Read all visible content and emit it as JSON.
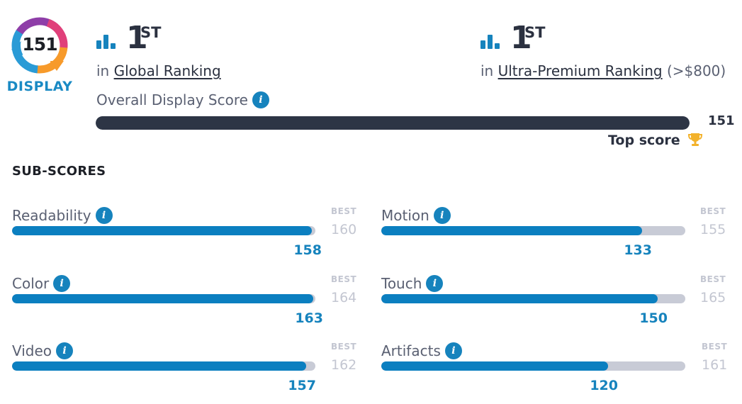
{
  "badge": {
    "score": "151",
    "label": "DISPLAY"
  },
  "rankings": [
    {
      "icon": "bar-chart-icon",
      "rank": "1",
      "suffix": "ST",
      "prefix": "in",
      "link_text": "Global Ranking",
      "extra": ""
    },
    {
      "icon": "bar-chart-icon",
      "rank": "1",
      "suffix": "ST",
      "prefix": "in",
      "link_text": "Ultra-Premium Ranking",
      "extra": "(>$800)"
    }
  ],
  "overall": {
    "label": "Overall Display Score",
    "value": "151",
    "fraction": 1.0,
    "top_score_label": "Top score",
    "top_score_icon": "trophy-icon"
  },
  "sub_scores_title": "SUB-SCORES",
  "best_label": "BEST",
  "sub_scores": [
    {
      "name": "Readability",
      "value": "158",
      "best": "160"
    },
    {
      "name": "Motion",
      "value": "133",
      "best": "155"
    },
    {
      "name": "Color",
      "value": "163",
      "best": "164"
    },
    {
      "name": "Touch",
      "value": "150",
      "best": "165"
    },
    {
      "name": "Video",
      "value": "157",
      "best": "162"
    },
    {
      "name": "Artifacts",
      "value": "120",
      "best": "161"
    }
  ],
  "colors": {
    "accent_blue": "#1683bd",
    "bar_fill": "#0b7fc0",
    "dark_bar": "#2d3545",
    "track": "#c8cbd6",
    "muted": "#c3c6d1",
    "trophy": "#f3b22b"
  }
}
